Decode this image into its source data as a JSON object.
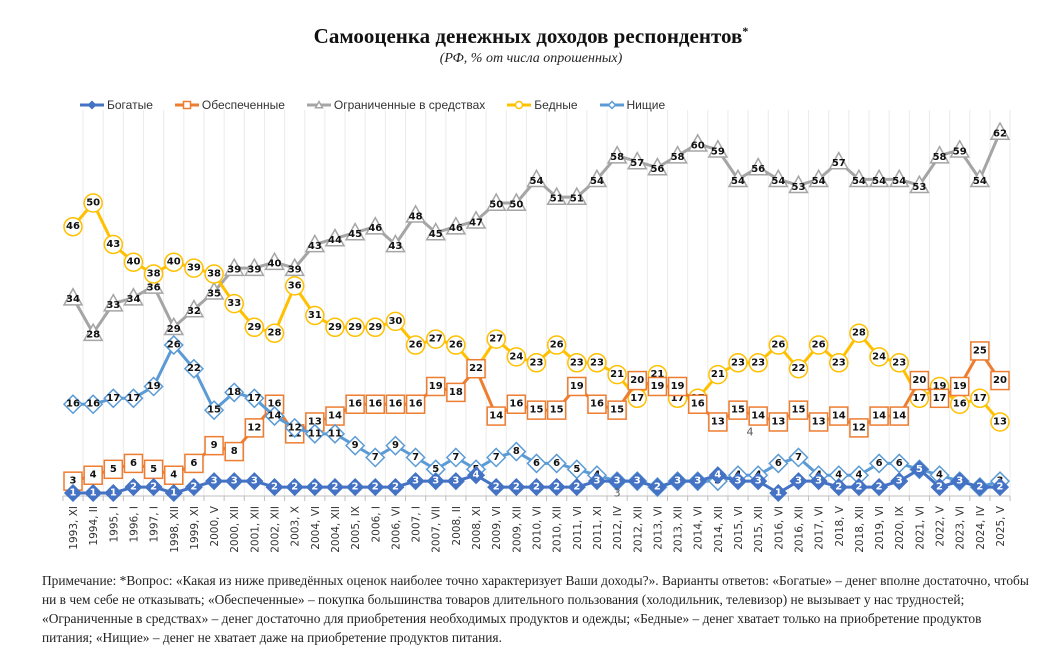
{
  "chart_data": {
    "type": "line",
    "title": "Самооценка денежных доходов респондентов",
    "title_marker": "*",
    "subtitle": "(РФ, % от числа опрошенных)",
    "xlabel": "",
    "ylabel": "",
    "ylim": [
      0,
      65
    ],
    "grid": "vertical",
    "legend_position": "top-left",
    "categories": [
      "1993, XI",
      "1994, II",
      "1995, I",
      "1996, I",
      "1997, I",
      "1998, XII",
      "1999, XI",
      "2000, V",
      "2000, XII",
      "2001, XII",
      "2002, XII",
      "2003, X",
      "2004, VI",
      "2004, XII",
      "2005, IX",
      "2006, I",
      "2006, VI",
      "2007, I",
      "2007, VII",
      "2008, II",
      "2008, XI",
      "2009, VI",
      "2009, XII",
      "2010, VI",
      "2010, XII",
      "2011, VI",
      "2011, XI",
      "2012, IV",
      "2012, XII",
      "2013, VI",
      "2013, XII",
      "2014, VI",
      "2014, XII",
      "2015, VI",
      "2015, XII",
      "2016, VI",
      "2016, XII",
      "2017, VI",
      "2018, V",
      "2018, XII",
      "2019, VI",
      "2020, IX",
      "2021, VI",
      "2022, V",
      "2023, VI",
      "2024, IV",
      "2025, V"
    ],
    "series": [
      {
        "name": "Богатые",
        "color": "#4472C4",
        "marker": "diamond-filled",
        "values": [
          1,
          1,
          1,
          2,
          2,
          1,
          2,
          3,
          3,
          3,
          2,
          2,
          2,
          2,
          2,
          2,
          2,
          3,
          3,
          3,
          4,
          2,
          2,
          2,
          2,
          2,
          3,
          3,
          3,
          2,
          3,
          3,
          4,
          3,
          3,
          1,
          3,
          3,
          2,
          2,
          2,
          3,
          5,
          2,
          3,
          2,
          2
        ]
      },
      {
        "name": "Обеспеченные",
        "color": "#ED7D31",
        "marker": "square",
        "values": [
          3,
          4,
          5,
          6,
          5,
          4,
          6,
          9,
          8,
          12,
          16,
          11,
          13,
          14,
          16,
          16,
          16,
          16,
          19,
          18,
          22,
          14,
          16,
          15,
          15,
          19,
          16,
          15,
          20,
          19,
          19,
          16,
          13,
          15,
          14,
          13,
          15,
          13,
          14,
          12,
          14,
          14,
          20,
          17,
          19,
          25,
          20
        ]
      },
      {
        "name": "Ограниченные в средствах",
        "color": "#A5A5A5",
        "marker": "triangle",
        "values": [
          34,
          28,
          33,
          34,
          36,
          29,
          32,
          35,
          39,
          39,
          40,
          39,
          43,
          44,
          45,
          46,
          43,
          48,
          45,
          46,
          47,
          50,
          50,
          54,
          51,
          51,
          54,
          58,
          57,
          56,
          58,
          60,
          59,
          54,
          56,
          54,
          53,
          54,
          57,
          54,
          54,
          54,
          53,
          58,
          59,
          54,
          62
        ]
      },
      {
        "name": "Бедные",
        "color": "#FFC000",
        "marker": "circle",
        "values": [
          46,
          50,
          43,
          40,
          38,
          40,
          39,
          38,
          33,
          29,
          28,
          36,
          31,
          29,
          29,
          29,
          30,
          26,
          27,
          26,
          22,
          27,
          24,
          23,
          26,
          23,
          23,
          21,
          17,
          21,
          17,
          17,
          21,
          23,
          23,
          26,
          22,
          26,
          23,
          28,
          24,
          23,
          17,
          19,
          16,
          17,
          13
        ]
      },
      {
        "name": "Нищие",
        "color": "#5B9BD5",
        "marker": "diamond-open",
        "values": [
          16,
          16,
          17,
          17,
          19,
          26,
          22,
          15,
          18,
          17,
          14,
          12,
          11,
          11,
          9,
          7,
          9,
          7,
          5,
          7,
          5,
          7,
          8,
          6,
          6,
          5,
          4,
          3,
          3,
          2,
          3,
          3,
          3,
          4,
          4,
          6,
          7,
          4,
          4,
          4,
          6,
          6,
          5,
          4,
          3,
          2,
          3
        ]
      }
    ],
    "extra_labels": [
      {
        "category": "2012, IV",
        "text": "3",
        "note": "stray label below axis"
      },
      {
        "category": "2015, VI",
        "text": "4",
        "note": "duplicate grey label"
      }
    ]
  },
  "note": "Примечание: *Вопрос: «Какая из ниже приведённых оценок наиболее точно характеризует Ваши доходы?». Варианты ответов: «Богатые» – денег вполне достаточно, чтобы ни в чем себе не отказывать; «Обеспеченные» – покупка большинства товаров длительного пользования (холодильник, телевизор) не вызывает у нас трудностей; «Ограниченные в средствах» – денег достаточно для приобретения необходимых продуктов и одежды; «Бедные» – денег хватает только на приобретение продуктов питания; «Нищие» – денег не хватает даже на приобретение продуктов питания."
}
